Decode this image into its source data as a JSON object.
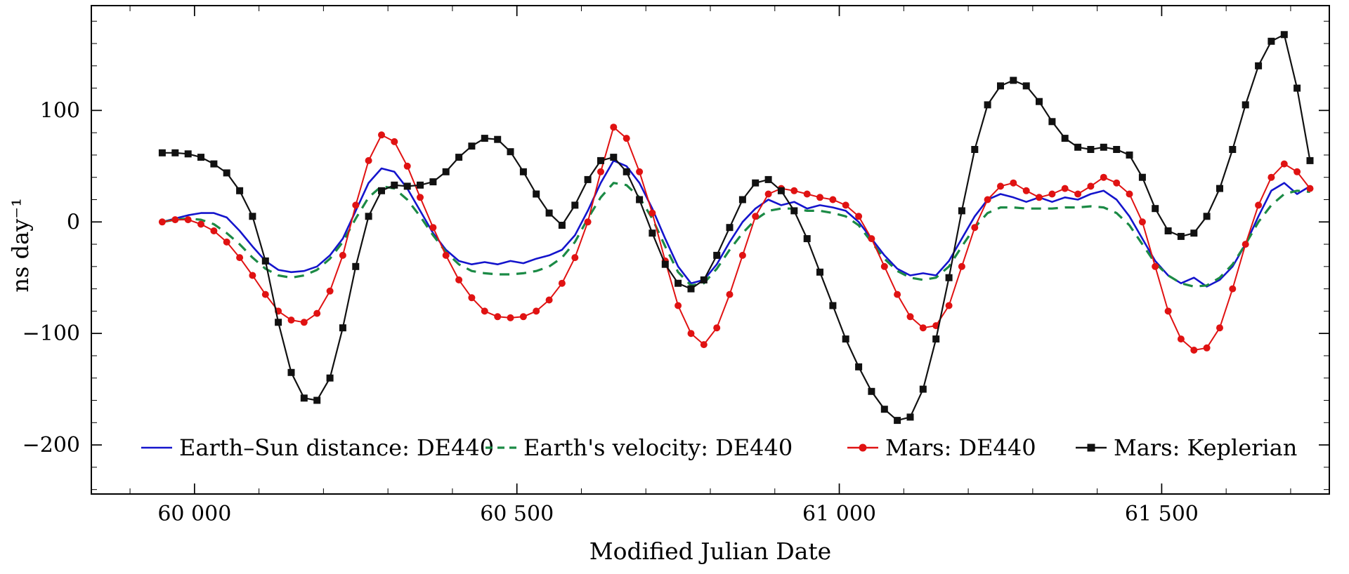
{
  "figure": {
    "background": "#ffffff",
    "frame_color": "#000000"
  },
  "chart_data": {
    "type": "line",
    "title": "",
    "xlabel": "Modified Julian Date",
    "ylabel": "ns day⁻¹",
    "xlim": [
      59840,
      61760
    ],
    "ylim": [
      -244,
      194
    ],
    "grid": false,
    "legend_position": "bottom-inside",
    "x_ticks": [
      {
        "value": 60000,
        "label": "60 000"
      },
      {
        "value": 60500,
        "label": "60 500"
      },
      {
        "value": 61000,
        "label": "61 000"
      },
      {
        "value": 61500,
        "label": "61 500"
      }
    ],
    "y_ticks": [
      {
        "value": -200,
        "label": "−200"
      },
      {
        "value": -100,
        "label": "−100"
      },
      {
        "value": 0,
        "label": "0"
      },
      {
        "value": 100,
        "label": "100"
      }
    ],
    "x_minor_step": 100,
    "y_minor_step": 20,
    "x": {
      "start": 59950,
      "step": 20,
      "count": 90
    },
    "series": [
      {
        "name": "Earth–Sun distance: DE440",
        "color": "#1414cc",
        "style": "solid",
        "marker": "none",
        "width": 2.6,
        "values": [
          0,
          3,
          6,
          8,
          8,
          4,
          -8,
          -22,
          -35,
          -43,
          -45,
          -44,
          -40,
          -30,
          -15,
          10,
          35,
          48,
          45,
          30,
          10,
          -10,
          -25,
          -35,
          -38,
          -36,
          -38,
          -35,
          -37,
          -33,
          -30,
          -25,
          -12,
          10,
          35,
          55,
          50,
          35,
          12,
          -15,
          -40,
          -55,
          -52,
          -38,
          -18,
          0,
          12,
          20,
          15,
          18,
          12,
          15,
          13,
          10,
          0,
          -15,
          -30,
          -42,
          -48,
          -46,
          -48,
          -35,
          -15,
          5,
          20,
          25,
          22,
          18,
          22,
          18,
          22,
          20,
          25,
          28,
          20,
          5,
          -15,
          -35,
          -48,
          -55,
          -50,
          -58,
          -52,
          -40,
          -20,
          5,
          28,
          35,
          25,
          32
        ]
      },
      {
        "name": "Earth's velocity: DE440",
        "color": "#1b8a45",
        "style": "dashed",
        "marker": "none",
        "width": 3.2,
        "values": [
          0,
          2,
          3,
          2,
          -2,
          -10,
          -20,
          -32,
          -42,
          -48,
          -50,
          -48,
          -43,
          -33,
          -18,
          3,
          22,
          32,
          30,
          20,
          5,
          -12,
          -27,
          -38,
          -44,
          -46,
          -47,
          -47,
          -46,
          -44,
          -40,
          -32,
          -18,
          3,
          22,
          35,
          33,
          22,
          3,
          -22,
          -45,
          -57,
          -55,
          -42,
          -25,
          -10,
          2,
          10,
          12,
          12,
          10,
          10,
          8,
          5,
          -3,
          -18,
          -33,
          -44,
          -50,
          -52,
          -50,
          -40,
          -22,
          -5,
          8,
          13,
          13,
          12,
          12,
          12,
          13,
          13,
          14,
          13,
          8,
          -3,
          -20,
          -37,
          -48,
          -55,
          -58,
          -57,
          -50,
          -38,
          -20,
          0,
          15,
          25,
          28,
          27
        ]
      },
      {
        "name": "Mars: DE440",
        "color": "#e01212",
        "style": "solid",
        "marker": "circle",
        "width": 2,
        "values": [
          0,
          2,
          2,
          -2,
          -8,
          -18,
          -32,
          -48,
          -65,
          -80,
          -88,
          -90,
          -82,
          -62,
          -30,
          15,
          55,
          78,
          72,
          50,
          22,
          -5,
          -30,
          -52,
          -68,
          -80,
          -85,
          -86,
          -85,
          -80,
          -70,
          -55,
          -32,
          0,
          45,
          85,
          75,
          45,
          8,
          -35,
          -75,
          -100,
          -110,
          -95,
          -65,
          -30,
          5,
          25,
          30,
          28,
          25,
          22,
          20,
          15,
          5,
          -15,
          -40,
          -65,
          -85,
          -95,
          -93,
          -75,
          -40,
          -5,
          20,
          32,
          35,
          28,
          22,
          25,
          30,
          25,
          32,
          40,
          35,
          25,
          0,
          -40,
          -80,
          -105,
          -115,
          -113,
          -95,
          -60,
          -20,
          15,
          40,
          52,
          45,
          30
        ]
      },
      {
        "name": "Mars: Keplerian",
        "color": "#111111",
        "style": "solid",
        "marker": "square",
        "width": 2.2,
        "values": [
          62,
          62,
          61,
          58,
          52,
          44,
          28,
          5,
          -35,
          -90,
          -135,
          -158,
          -160,
          -140,
          -95,
          -40,
          5,
          28,
          33,
          32,
          33,
          36,
          45,
          58,
          68,
          75,
          74,
          63,
          45,
          25,
          8,
          -3,
          15,
          38,
          55,
          58,
          45,
          20,
          -10,
          -38,
          -55,
          -60,
          -52,
          -30,
          -5,
          20,
          35,
          38,
          28,
          10,
          -15,
          -45,
          -75,
          -105,
          -130,
          -152,
          -168,
          -178,
          -175,
          -150,
          -105,
          -50,
          10,
          65,
          105,
          122,
          127,
          122,
          108,
          90,
          75,
          67,
          65,
          67,
          65,
          60,
          40,
          12,
          -8,
          -13,
          -10,
          5,
          30,
          65,
          105,
          140,
          162,
          168,
          120,
          55
        ]
      }
    ]
  }
}
